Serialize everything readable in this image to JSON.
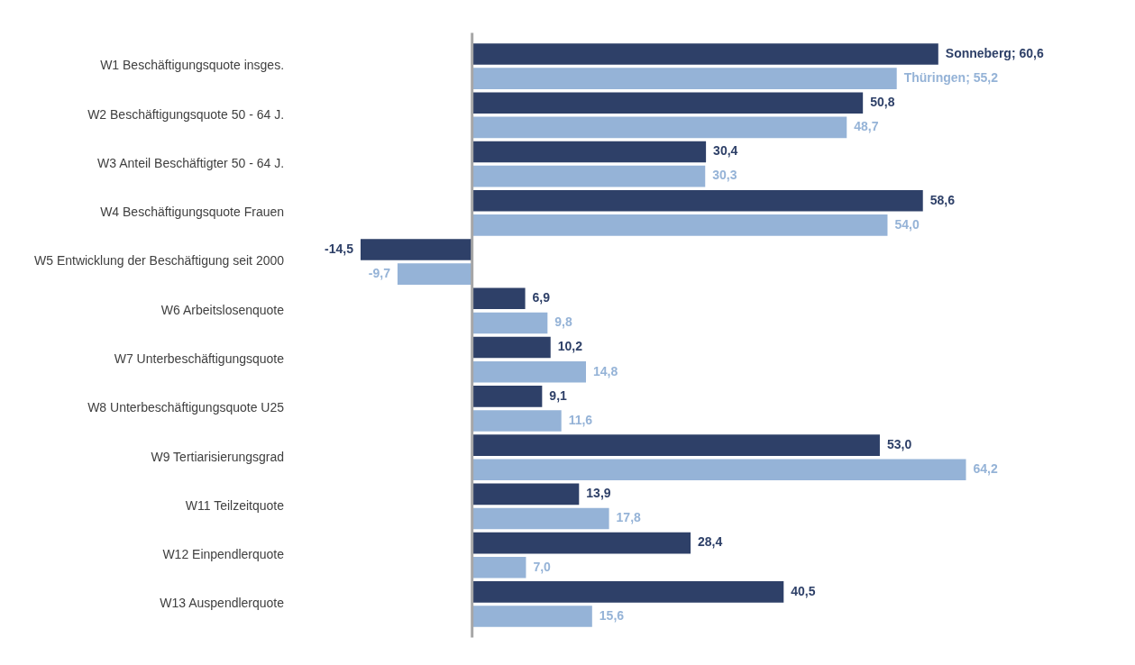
{
  "chart_data": {
    "type": "bar",
    "orientation": "horizontal",
    "categories": [
      "W1 Beschäftigungsquote insges.",
      "W2 Beschäftigungsquote 50 - 64 J.",
      "W3 Anteil Beschäftigter 50 - 64 J.",
      "W4 Beschäftigungsquote Frauen",
      "W5 Entwicklung der Beschäftigung seit 2000",
      "W6 Arbeitslosenquote",
      "W7 Unterbeschäftigungsquote",
      "W8 Unterbeschäftigungsquote U25",
      "W9 Tertiarisierungsgrad",
      "W11 Teilzeitquote",
      "W12 Einpendlerquote",
      "W13 Auspendlerquote"
    ],
    "series": [
      {
        "name": "Sonneberg;",
        "color": "#2e4068",
        "values": [
          60.6,
          50.8,
          30.4,
          58.6,
          -14.5,
          6.9,
          10.2,
          9.1,
          53.0,
          13.9,
          28.4,
          40.5
        ],
        "value_labels": [
          "60,6",
          "50,8",
          "30,4",
          "58,6",
          "-14,5",
          "6,9",
          "10,2",
          "9,1",
          "53,0",
          "13,9",
          "28,4",
          "40,5"
        ]
      },
      {
        "name": "Thüringen;",
        "color": "#95b3d7",
        "values": [
          55.2,
          48.7,
          30.3,
          54.0,
          -9.7,
          9.8,
          14.8,
          11.6,
          64.2,
          17.8,
          7.0,
          15.6
        ],
        "value_labels": [
          "55,2",
          "48,7",
          "30,3",
          "54,0",
          "-9,7",
          "9,8",
          "14,8",
          "11,6",
          "64,2",
          "17,8",
          "7,0",
          "15,6"
        ]
      }
    ],
    "legend": false,
    "grid": false
  }
}
